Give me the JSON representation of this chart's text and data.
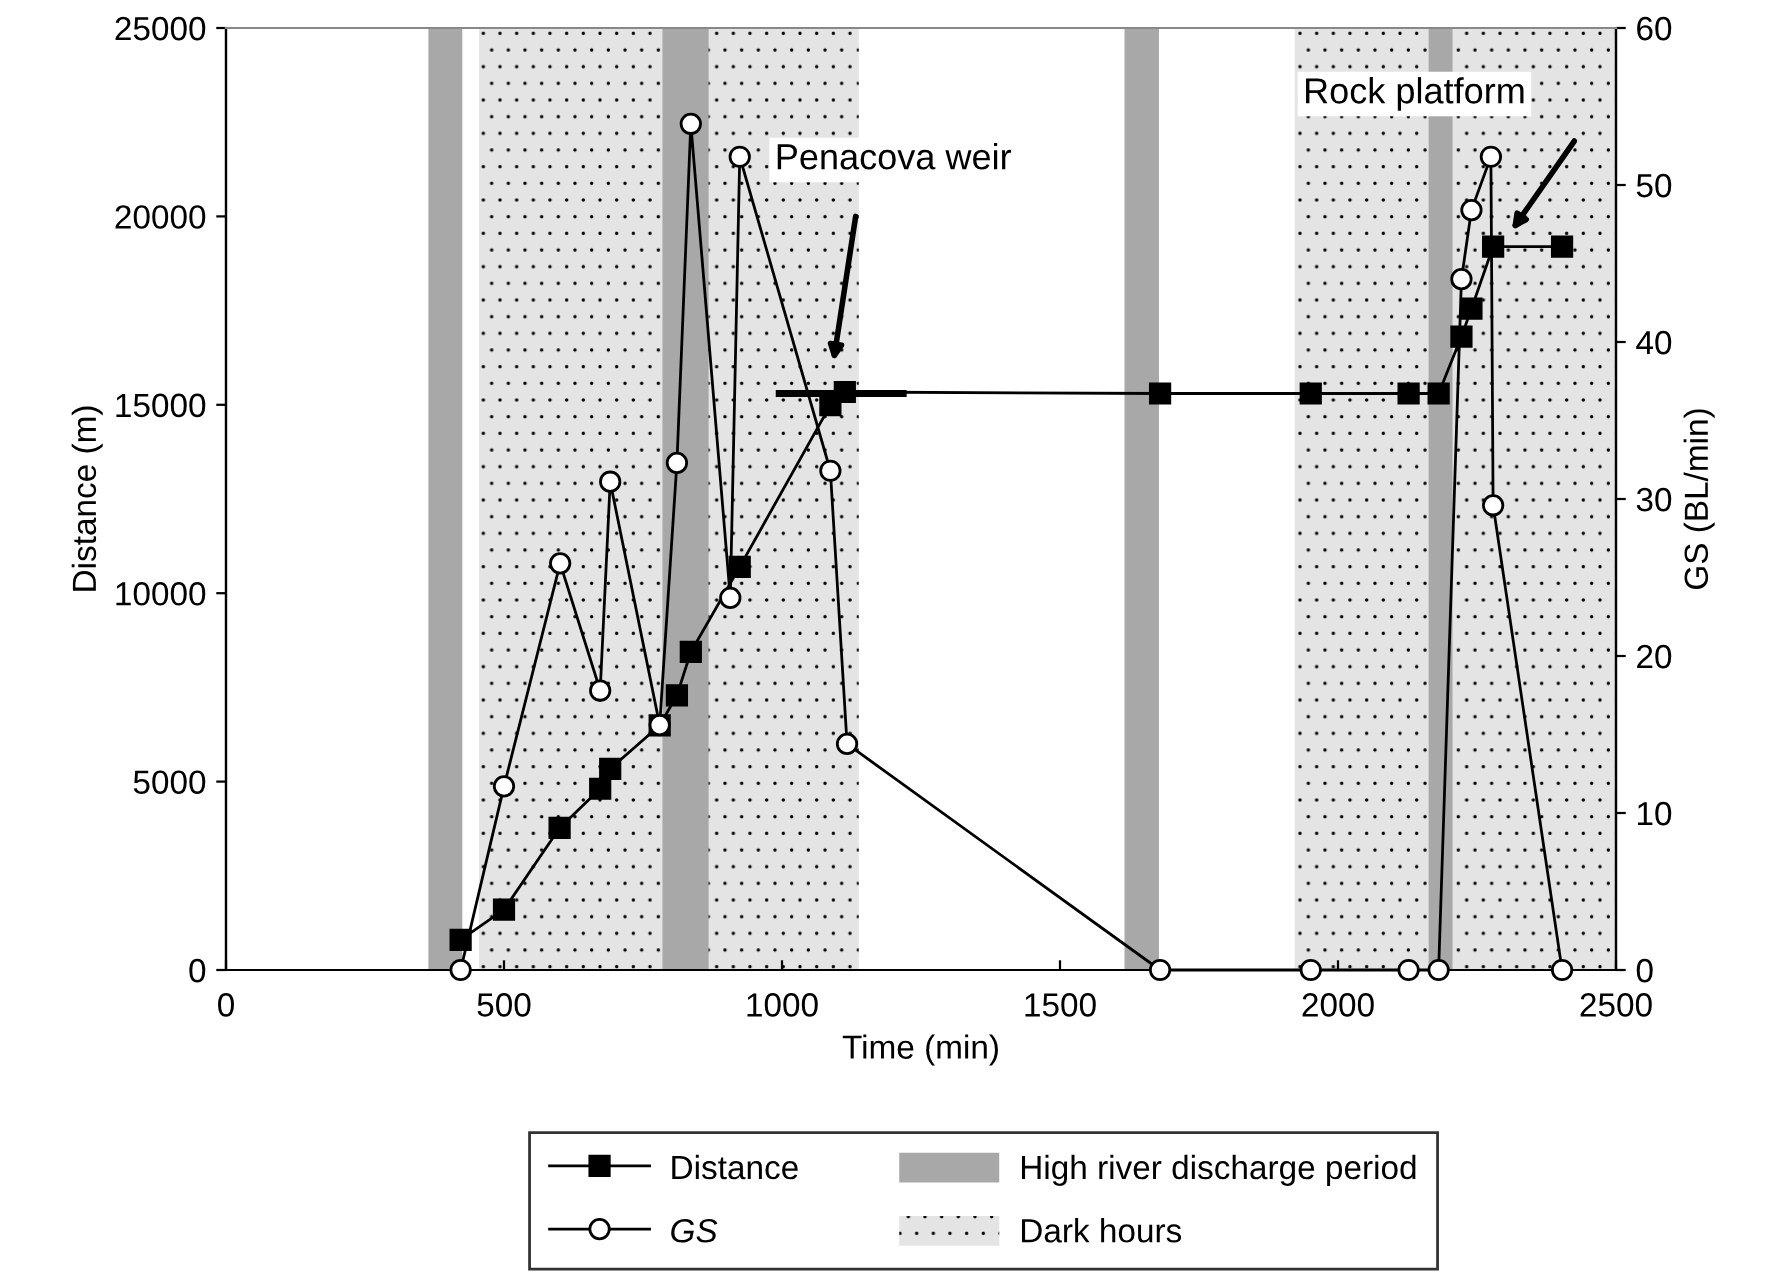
{
  "chart_data": {
    "type": "line",
    "xlabel": "Time (min)",
    "ylabel": "Distance (m)",
    "y2label": "GS (BL/min)",
    "xlim": [
      0,
      2500
    ],
    "xticks": [
      0,
      500,
      1000,
      1500,
      2000,
      2500
    ],
    "ylim": [
      0,
      25000
    ],
    "yticks": [
      0,
      5000,
      10000,
      15000,
      20000,
      25000
    ],
    "y2lim": [
      0,
      60
    ],
    "y2ticks": [
      0,
      10,
      20,
      30,
      40,
      50,
      60
    ],
    "grid": false,
    "legend": "bottom",
    "line_style": "solid",
    "series": [
      {
        "name": "Distance",
        "color": "#000000",
        "marker": "square",
        "x": [
          422,
          500,
          600,
          673,
          691,
          780,
          811,
          836,
          924,
          1087,
          1113,
          1680,
          1951,
          2127,
          2181,
          2222,
          2240,
          2279,
          2403
        ],
        "values": [
          800,
          1600,
          3770,
          4810,
          5340,
          6490,
          7290,
          8440,
          10700,
          14990,
          15340,
          15300,
          15300,
          15300,
          15300,
          16810,
          17550,
          19200,
          19200
        ]
      },
      {
        "name": "GS",
        "color": "#000000",
        "marker": "circle",
        "axis": "y2",
        "x": [
          422,
          500,
          601,
          673,
          691,
          780,
          811,
          836,
          907,
          924,
          1087,
          1117,
          1680,
          1951,
          2127,
          2181,
          2222,
          2240,
          2275,
          2279,
          2403
        ],
        "values": [
          0,
          11.7,
          25.9,
          17.8,
          31.1,
          15.6,
          32.3,
          53.9,
          23.7,
          51.8,
          31.8,
          14.4,
          0,
          0,
          0,
          0,
          44.0,
          48.4,
          51.8,
          29.6,
          0
        ]
      },
      {
        "color": "#000000",
        "marker": "none",
        "x": [
          995,
          1218
        ],
        "values": [
          15300,
          15300
        ]
      }
    ],
    "bands": [
      {
        "axis": "x",
        "from": 364,
        "to": 425,
        "label": "High river discharge period",
        "color": "#a8a8a8"
      },
      {
        "axis": "x",
        "from": 455,
        "to": 1138,
        "label": "Dark hours",
        "color": "#e4e4e4"
      },
      {
        "axis": "x",
        "from": 1922,
        "to": 2500,
        "color": "#e4e4e4"
      },
      {
        "axis": "x",
        "from": 785,
        "to": 868,
        "color": "#a8a8a8"
      },
      {
        "axis": "x",
        "from": 1616,
        "to": 1678,
        "color": "#a8a8a8"
      },
      {
        "axis": "x",
        "from": 2163,
        "to": 2206,
        "color": "#a8a8a8"
      }
    ],
    "annotations": [
      "Penacova weir",
      "Rock platform"
    ]
  }
}
